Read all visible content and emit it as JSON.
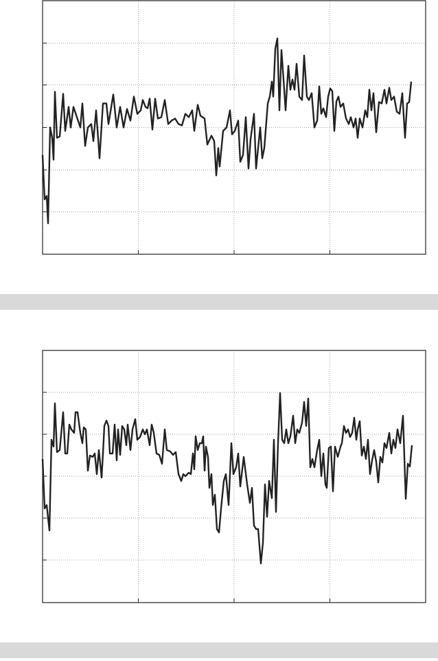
{
  "chart_data": [
    {
      "type": "line",
      "grid": true,
      "xlim": [
        0,
        558
      ],
      "xticks": [
        139.5,
        279,
        418.5
      ],
      "ylim": [
        0,
        370
      ],
      "yticks": [
        62,
        123,
        185,
        247,
        308
      ],
      "x": [
        0,
        3,
        6,
        8,
        11,
        14,
        16,
        18,
        21,
        25,
        30,
        33,
        38,
        41,
        45,
        50,
        55,
        58,
        62,
        66,
        71,
        74,
        78,
        83,
        88,
        93,
        96,
        103,
        108,
        113,
        118,
        123,
        128,
        133,
        138,
        143,
        146,
        150,
        153,
        156,
        160,
        164,
        168,
        173,
        178,
        183,
        188,
        193,
        198,
        203,
        208,
        213,
        218,
        221,
        226,
        230,
        236,
        240,
        246,
        250,
        253,
        256,
        258,
        263,
        268,
        273,
        276,
        280,
        285,
        288,
        292,
        296,
        300,
        303,
        308,
        311,
        314,
        317,
        320,
        323,
        328,
        331,
        334,
        336,
        339,
        342,
        345,
        348,
        351,
        354,
        358,
        361,
        364,
        367,
        370,
        374,
        378,
        381,
        385,
        388,
        392,
        396,
        400,
        403,
        406,
        409,
        413,
        416,
        419,
        422,
        425,
        428,
        431,
        434,
        438,
        442,
        446,
        449,
        453,
        456,
        459,
        462,
        466,
        470,
        473,
        476,
        479,
        482,
        486,
        490,
        494,
        498,
        501,
        505,
        508,
        512,
        516,
        520,
        524,
        528,
        531,
        534,
        537
      ],
      "series": [
        {
          "color": "#222222",
          "values": [
            145,
            80,
            85,
            45,
            185,
            170,
            138,
            237,
            170,
            172,
            234,
            180,
            215,
            185,
            215,
            200,
            185,
            220,
            158,
            185,
            190,
            165,
            210,
            140,
            220,
            220,
            190,
            233,
            185,
            215,
            185,
            212,
            195,
            230,
            205,
            210,
            225,
            215,
            213,
            227,
            182,
            227,
            198,
            200,
            225,
            190,
            195,
            198,
            190,
            188,
            205,
            200,
            210,
            180,
            218,
            202,
            198,
            160,
            173,
            165,
            115,
            155,
            128,
            180,
            185,
            210,
            175,
            180,
            195,
            135,
            145,
            200,
            125,
            168,
            205,
            125,
            155,
            185,
            140,
            155,
            220,
            230,
            252,
            230,
            300,
            315,
            210,
            298,
            255,
            210,
            275,
            240,
            255,
            240,
            278,
            230,
            225,
            290,
            230,
            225,
            235,
            185,
            195,
            245,
            205,
            213,
            200,
            230,
            242,
            238,
            180,
            223,
            230,
            215,
            220,
            198,
            190,
            200,
            185,
            198,
            170,
            198,
            185,
            210,
            200,
            240,
            210,
            235,
            178,
            222,
            220,
            240,
            220,
            243,
            225,
            230,
            208,
            205,
            235,
            170,
            220,
            222,
            252
          ]
        }
      ]
    },
    {
      "type": "line",
      "grid": true,
      "xlim": [
        0,
        558
      ],
      "xticks": [
        139.5,
        279,
        418.5
      ],
      "ylim": [
        0,
        367
      ],
      "yticks": [
        62,
        123,
        184,
        245,
        306
      ],
      "x": [
        0,
        3,
        6,
        10,
        13,
        16,
        18,
        21,
        25,
        30,
        33,
        36,
        39,
        42,
        46,
        48,
        51,
        55,
        58,
        60,
        63,
        66,
        69,
        73,
        76,
        79,
        82,
        86,
        88,
        90,
        93,
        96,
        98,
        102,
        105,
        108,
        110,
        113,
        116,
        119,
        122,
        124,
        128,
        131,
        135,
        138,
        142,
        146,
        149,
        152,
        156,
        159,
        162,
        166,
        170,
        174,
        178,
        181,
        186,
        190,
        194,
        198,
        202,
        205,
        208,
        213,
        216,
        219,
        221,
        223,
        226,
        229,
        232,
        234,
        236,
        238,
        241,
        243,
        246,
        248,
        251,
        254,
        257,
        260,
        264,
        267,
        271,
        275,
        278,
        282,
        285,
        288,
        293,
        298,
        302,
        305,
        308,
        311,
        314,
        318,
        321,
        324,
        327,
        330,
        334,
        337,
        340,
        343,
        346,
        349,
        352,
        355,
        358,
        361,
        365,
        368,
        371,
        374,
        378,
        381,
        384,
        387,
        390,
        393,
        396,
        400,
        403,
        406,
        409,
        412,
        414,
        417,
        420,
        423,
        426,
        430,
        434,
        436,
        439,
        442,
        445,
        448,
        451,
        454,
        457,
        459,
        462,
        465,
        468,
        471,
        474,
        477,
        480,
        483,
        486,
        489,
        492,
        495,
        498,
        501,
        505,
        508,
        511,
        514,
        517,
        521,
        525,
        529,
        532,
        535,
        538
      ],
      "series": [
        {
          "color": "#222222",
          "values": [
            209,
            137,
            142,
            105,
            237,
            227,
            290,
            219,
            222,
            277,
            217,
            217,
            259,
            252,
            247,
            277,
            277,
            247,
            232,
            255,
            252,
            192,
            214,
            212,
            217,
            187,
            222,
            182,
            217,
            257,
            265,
            257,
            217,
            217,
            259,
            207,
            252,
            215,
            257,
            252,
            229,
            259,
            222,
            252,
            267,
            237,
            241,
            252,
            245,
            252,
            229,
            259,
            247,
            217,
            215,
            202,
            252,
            222,
            220,
            215,
            219,
            187,
            177,
            187,
            184,
            189,
            187,
            217,
            194,
            242,
            222,
            232,
            232,
            242,
            192,
            227,
            212,
            167,
            187,
            142,
            157,
            107,
            102,
            137,
            177,
            187,
            142,
            232,
            187,
            197,
            217,
            169,
            212,
            172,
            145,
            167,
            112,
            107,
            107,
            57,
            87,
            172,
            125,
            177,
            152,
            237,
            132,
            232,
            305,
            237,
            232,
            252,
            232,
            242,
            272,
            232,
            252,
            247,
            262,
            292,
            257,
            297,
            197,
            209,
            197,
            222,
            237,
            184,
            217,
            172,
            167,
            225,
            227,
            162,
            227,
            212,
            227,
            232,
            257,
            247,
            252,
            241,
            247,
            269,
            237,
            252,
            264,
            214,
            227,
            209,
            237,
            187,
            207,
            222,
            205,
            175,
            212,
            204,
            232,
            225,
            247,
            217,
            237,
            225,
            252,
            232,
            272,
            151,
            202,
            198,
            229
          ]
        }
      ]
    }
  ]
}
